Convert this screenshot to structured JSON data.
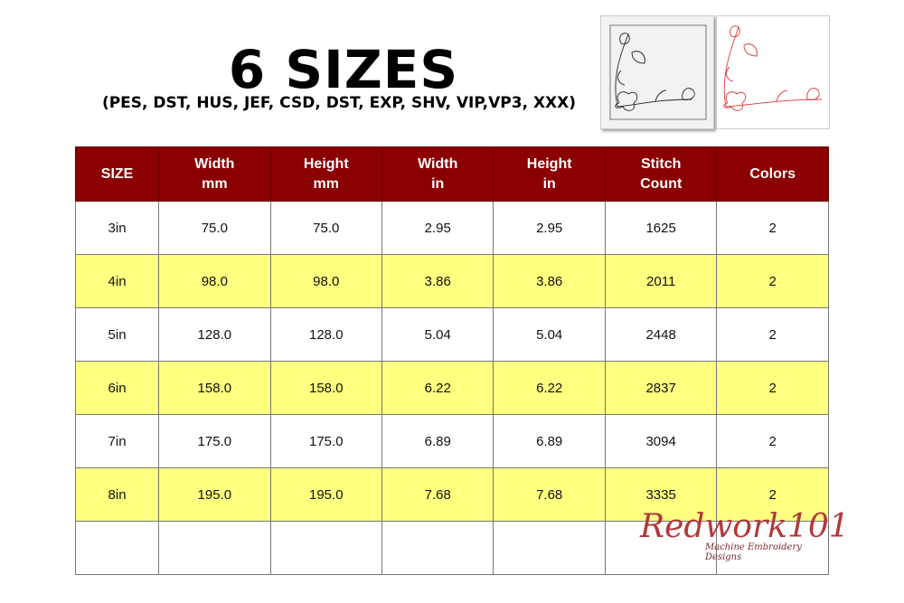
{
  "header": {
    "title": "6 SIZES",
    "formats": "(PES, DST, HUS, JEF, CSD, DST, EXP, SHV, VIP,VP3, XXX)"
  },
  "colors": {
    "header_bg": "#8b0000",
    "alt_row": "#ffff80",
    "redwork": "#d9383c"
  },
  "table": {
    "columns": [
      [
        "SIZE",
        ""
      ],
      [
        "Width",
        "mm"
      ],
      [
        "Height",
        "mm"
      ],
      [
        "Width",
        "in"
      ],
      [
        "Height",
        "in"
      ],
      [
        "Stitch",
        "Count"
      ],
      [
        "Colors",
        ""
      ]
    ],
    "rows": [
      [
        "3in",
        "75.0",
        "75.0",
        "2.95",
        "2.95",
        "1625",
        "2"
      ],
      [
        "4in",
        "98.0",
        "98.0",
        "3.86",
        "3.86",
        "2011",
        "2"
      ],
      [
        "5in",
        "128.0",
        "128.0",
        "5.04",
        "5.04",
        "2448",
        "2"
      ],
      [
        "6in",
        "158.0",
        "158.0",
        "6.22",
        "6.22",
        "2837",
        "2"
      ],
      [
        "7in",
        "175.0",
        "175.0",
        "6.89",
        "6.89",
        "3094",
        "2"
      ],
      [
        "8in",
        "195.0",
        "195.0",
        "7.68",
        "7.68",
        "3335",
        "2"
      ],
      [
        "",
        "",
        "",
        "",
        "",
        "",
        ""
      ]
    ]
  },
  "logo": {
    "name": "Redwork101",
    "tagline": "Machine Embroidery Designs"
  }
}
